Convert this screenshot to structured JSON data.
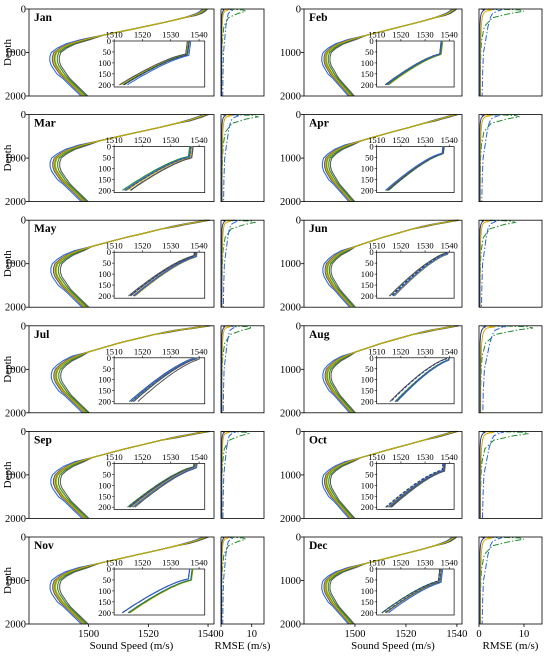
{
  "chart_data": {
    "type": "line",
    "layout": "6 rows x 2 columns; each cell = sound speed profile panel + RMSE panel with inset zoom of top 200",
    "months": [
      "Jan",
      "Feb",
      "Mar",
      "Apr",
      "May",
      "Jun",
      "Jul",
      "Aug",
      "Sep",
      "Oct",
      "Nov",
      "Dec"
    ],
    "ylabel": "Depth",
    "xlabel_profile": "Sound Speed (m/s)",
    "xlabel_rmse": "RMSE (m/s)",
    "depth_ticks": [
      0,
      1000,
      2000
    ],
    "speed_ticks": [
      1500,
      1520,
      1540
    ],
    "rmse_ticks": [
      0,
      10
    ],
    "inset_x_ticks": [
      1510,
      1520,
      1530,
      1540
    ],
    "inset_y_ticks": [
      0,
      50,
      100,
      150,
      200
    ],
    "ylim": [
      0,
      2000
    ],
    "xlim_profile": [
      1480,
      1542
    ],
    "xlim_rmse": [
      0,
      14
    ],
    "inset_xlim": [
      1510,
      1542
    ],
    "inset_ylim": [
      0,
      210
    ],
    "series_colors": {
      "blue": "#2a63d6",
      "yellow": "#d4aa00",
      "green": "#1f8a2c",
      "gray": "#555555",
      "navy": "#2a3d7a"
    },
    "profile_depth": [
      0,
      30,
      60,
      100,
      150,
      200,
      300,
      400,
      500,
      600,
      700,
      800,
      900,
      1000,
      1100,
      1200,
      1300,
      1400,
      1500,
      1600,
      1700,
      1800,
      1900,
      2000
    ],
    "profiles": {
      "winter": [
        1539,
        1538.5,
        1538,
        1537,
        1535,
        1532,
        1526,
        1519,
        1512,
        1505,
        1499,
        1494,
        1491,
        1489,
        1488.5,
        1488.5,
        1489,
        1490,
        1491,
        1492.5,
        1494,
        1495.5,
        1497,
        1498.5
      ],
      "summer": [
        1540,
        1537,
        1534,
        1530,
        1526,
        1522,
        1516,
        1510,
        1505,
        1500,
        1496,
        1493,
        1491,
        1489.5,
        1489,
        1489,
        1489.5,
        1490.5,
        1491.5,
        1493,
        1494.5,
        1496,
        1497.5,
        1499
      ]
    },
    "rmse_depth": [
      0,
      20,
      50,
      100,
      200,
      400,
      700,
      1000,
      1500,
      2000
    ],
    "rmse_series": [
      {
        "color": "green",
        "style": "dashdot",
        "values": [
          3,
          9,
          10,
          7,
          3,
          1.2,
          0.6,
          0.4,
          0.3,
          0.3
        ]
      },
      {
        "color": "blue",
        "style": "dashdot",
        "values": [
          2,
          5,
          4,
          3,
          2.5,
          2,
          1.5,
          1,
          0.8,
          0.7
        ]
      },
      {
        "color": "yellow",
        "style": "solid",
        "values": [
          1,
          3,
          1.5,
          1,
          0.7,
          0.5,
          0.4,
          0.3,
          0.3,
          0.3
        ]
      },
      {
        "color": "navy",
        "style": "solid",
        "values": [
          0.5,
          1.2,
          0.8,
          0.5,
          0.3,
          0.2,
          0.2,
          0.2,
          0.2,
          0.2
        ]
      }
    ]
  }
}
